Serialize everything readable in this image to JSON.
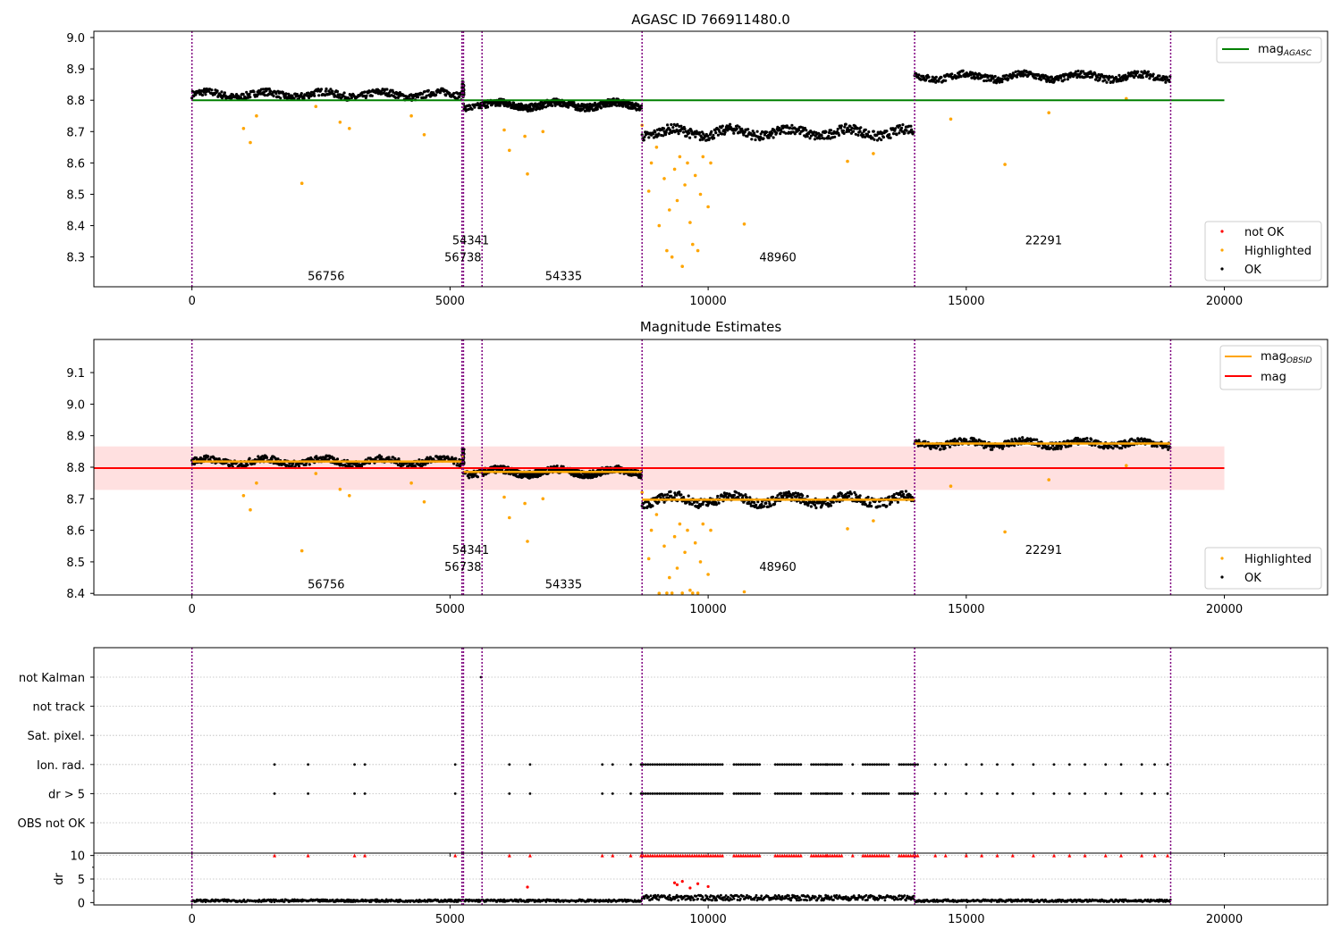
{
  "chart_data": [
    {
      "panel": "agasc",
      "type": "scatter",
      "title": "AGASC ID 766911480.0",
      "xlabel": "",
      "ylabel": "",
      "xlim": [
        -1900,
        22000
      ],
      "ylim": [
        8.205,
        9.02
      ],
      "xticks": [
        0,
        5000,
        10000,
        15000,
        20000
      ],
      "yticks": [
        8.3,
        8.4,
        8.5,
        8.6,
        8.7,
        8.8,
        8.9,
        9.0
      ],
      "yticklabels": [
        "8.3",
        "8.4",
        "8.5",
        "8.6",
        "8.7",
        "8.8",
        "8.9",
        "9.0"
      ],
      "reference_line": {
        "name": "mag",
        "subscript": "AGASC",
        "y": 8.8,
        "x": [
          0,
          20000
        ],
        "color": "#008000"
      },
      "obsid_boundaries": [
        0,
        5230,
        5260,
        5620,
        8720,
        14000,
        18960
      ],
      "obsid_segments": [
        {
          "label": "56756",
          "x_start": 0,
          "x_end": 5230,
          "mag": 8.818,
          "label_x": 2600,
          "label_y": 8.24
        },
        {
          "label": "56738",
          "x_start": 5230,
          "x_end": 5260,
          "mag": 8.835,
          "label_x": 5250,
          "label_y": 8.3
        },
        {
          "label": "54341",
          "x_start": 5260,
          "x_end": 8720,
          "mag": 8.785,
          "label_x": 5400,
          "label_y": 8.355
        },
        {
          "label": "54335",
          "x_start": 5620,
          "x_end": 8720,
          "mag": 8.785,
          "label_x": 7200,
          "label_y": 8.24
        },
        {
          "label": "48960",
          "x_start": 8720,
          "x_end": 14000,
          "mag": 8.697,
          "label_x": 11350,
          "label_y": 8.3
        },
        {
          "label": "22291",
          "x_start": 14000,
          "x_end": 18960,
          "mag": 8.875,
          "label_x": 16500,
          "label_y": 8.355
        }
      ],
      "highlighted_points": [
        {
          "x": 1000,
          "y": 8.71
        },
        {
          "x": 1130,
          "y": 8.665
        },
        {
          "x": 1250,
          "y": 8.75
        },
        {
          "x": 2130,
          "y": 8.535
        },
        {
          "x": 2400,
          "y": 8.78
        },
        {
          "x": 2870,
          "y": 8.73
        },
        {
          "x": 3050,
          "y": 8.71
        },
        {
          "x": 4250,
          "y": 8.75
        },
        {
          "x": 4500,
          "y": 8.69
        },
        {
          "x": 6050,
          "y": 8.705
        },
        {
          "x": 6150,
          "y": 8.64
        },
        {
          "x": 6450,
          "y": 8.685
        },
        {
          "x": 6500,
          "y": 8.565
        },
        {
          "x": 6800,
          "y": 8.7
        },
        {
          "x": 8720,
          "y": 8.72
        },
        {
          "x": 8850,
          "y": 8.51
        },
        {
          "x": 8900,
          "y": 8.6
        },
        {
          "x": 9000,
          "y": 8.65
        },
        {
          "x": 9050,
          "y": 8.4
        },
        {
          "x": 9150,
          "y": 8.55
        },
        {
          "x": 9200,
          "y": 8.32
        },
        {
          "x": 9250,
          "y": 8.45
        },
        {
          "x": 9300,
          "y": 8.3
        },
        {
          "x": 9350,
          "y": 8.58
        },
        {
          "x": 9400,
          "y": 8.48
        },
        {
          "x": 9450,
          "y": 8.62
        },
        {
          "x": 9500,
          "y": 8.27
        },
        {
          "x": 9550,
          "y": 8.53
        },
        {
          "x": 9600,
          "y": 8.6
        },
        {
          "x": 9650,
          "y": 8.41
        },
        {
          "x": 9700,
          "y": 8.34
        },
        {
          "x": 9750,
          "y": 8.56
        },
        {
          "x": 9800,
          "y": 8.32
        },
        {
          "x": 9850,
          "y": 8.5
        },
        {
          "x": 9900,
          "y": 8.62
        },
        {
          "x": 10000,
          "y": 8.46
        },
        {
          "x": 10050,
          "y": 8.6
        },
        {
          "x": 10700,
          "y": 8.405
        },
        {
          "x": 12700,
          "y": 8.605
        },
        {
          "x": 13200,
          "y": 8.63
        },
        {
          "x": 14700,
          "y": 8.74
        },
        {
          "x": 15750,
          "y": 8.595
        },
        {
          "x": 16600,
          "y": 8.76
        },
        {
          "x": 18100,
          "y": 8.805
        }
      ],
      "legends": [
        {
          "position": "upper-right",
          "entries": [
            {
              "label": "mag",
              "subscript": "AGASC",
              "marker": "line",
              "color": "#008000"
            }
          ]
        },
        {
          "position": "lower-right",
          "entries": [
            {
              "label": "not OK",
              "marker": "dot",
              "color": "#ff0000"
            },
            {
              "label": "Highlighted",
              "marker": "dot",
              "color": "#ffa500"
            },
            {
              "label": "OK",
              "marker": "dot",
              "color": "#000000"
            }
          ]
        }
      ]
    },
    {
      "panel": "estimates",
      "type": "scatter",
      "title": "Magnitude Estimates",
      "xlabel": "",
      "ylabel": "",
      "xlim": [
        -1900,
        22000
      ],
      "ylim": [
        8.395,
        9.205
      ],
      "xticks": [
        0,
        5000,
        10000,
        15000,
        20000
      ],
      "yticks": [
        8.4,
        8.5,
        8.6,
        8.7,
        8.8,
        8.9,
        9.0,
        9.1
      ],
      "yticklabels": [
        "8.4",
        "8.5",
        "8.6",
        "8.7",
        "8.8",
        "8.9",
        "9.0",
        "9.1"
      ],
      "mean_line": {
        "name": "mag",
        "y": 8.797,
        "x": [
          -1900,
          20000
        ],
        "band": [
          8.728,
          8.866
        ],
        "color": "#ff0000"
      },
      "obsid_mag_label": {
        "name": "mag",
        "subscript": "OBSID",
        "color": "#ffa500"
      },
      "obsid_annotations": [
        {
          "label": "56756",
          "x": 2600,
          "y": 8.43
        },
        {
          "label": "56738",
          "x": 5250,
          "y": 8.485
        },
        {
          "label": "54341",
          "x": 5400,
          "y": 8.54
        },
        {
          "label": "54335",
          "x": 7200,
          "y": 8.43
        },
        {
          "label": "48960",
          "x": 11350,
          "y": 8.485
        },
        {
          "label": "22291",
          "x": 16500,
          "y": 8.54
        }
      ],
      "legends": [
        {
          "position": "upper-right",
          "entries": [
            {
              "label": "mag",
              "subscript": "OBSID",
              "marker": "line",
              "color": "#ffa500"
            },
            {
              "label": "mag",
              "marker": "line",
              "color": "#ff0000"
            }
          ]
        },
        {
          "position": "lower-right",
          "entries": [
            {
              "label": "Highlighted",
              "marker": "dot",
              "color": "#ffa500"
            },
            {
              "label": "OK",
              "marker": "dot",
              "color": "#000000"
            }
          ]
        }
      ]
    },
    {
      "panel": "flags",
      "type": "scatter",
      "title": "",
      "xlim": [
        -1900,
        22000
      ],
      "xticks": [
        0,
        5000,
        10000,
        15000,
        20000
      ],
      "categories": [
        "not Kalman",
        "not track",
        "Sat. pixel.",
        "Ion. rad.",
        "dr > 5",
        "OBS not OK"
      ],
      "flag_events_x": [
        1600,
        2250,
        3150,
        3350,
        5100,
        6150,
        6550,
        7950,
        8150,
        8500,
        12300,
        12800,
        14400,
        14600,
        15000,
        15300,
        15600,
        15900,
        16300,
        16700,
        17000,
        17300,
        17700,
        18000,
        18400,
        18650,
        18900
      ],
      "dense_flag_ranges": [
        [
          8700,
          10300
        ],
        [
          10500,
          11000
        ],
        [
          11300,
          11800
        ],
        [
          12000,
          12600
        ],
        [
          13000,
          13500
        ],
        [
          13700,
          14100
        ]
      ],
      "not_kalman_events_x": [
        5600
      ]
    },
    {
      "panel": "dr",
      "type": "scatter",
      "title": "",
      "ylabel": "dr",
      "xlim": [
        -1900,
        22000
      ],
      "ylim": [
        -0.5,
        10.5
      ],
      "yticks": [
        0,
        5,
        10
      ],
      "yticklabels": [
        "0",
        "5",
        "10"
      ],
      "xticks": [
        0,
        5000,
        10000,
        15000,
        20000
      ],
      "xticklabels": [
        "0",
        "5000",
        "10000",
        "15000",
        "20000"
      ],
      "red_points": [
        {
          "x": 9350,
          "y": 4.2
        },
        {
          "x": 9400,
          "y": 3.8
        },
        {
          "x": 9500,
          "y": 4.5
        },
        {
          "x": 9650,
          "y": 3.1
        },
        {
          "x": 9800,
          "y": 4.0
        },
        {
          "x": 10000,
          "y": 3.4
        },
        {
          "x": 6500,
          "y": 3.3
        }
      ]
    }
  ]
}
